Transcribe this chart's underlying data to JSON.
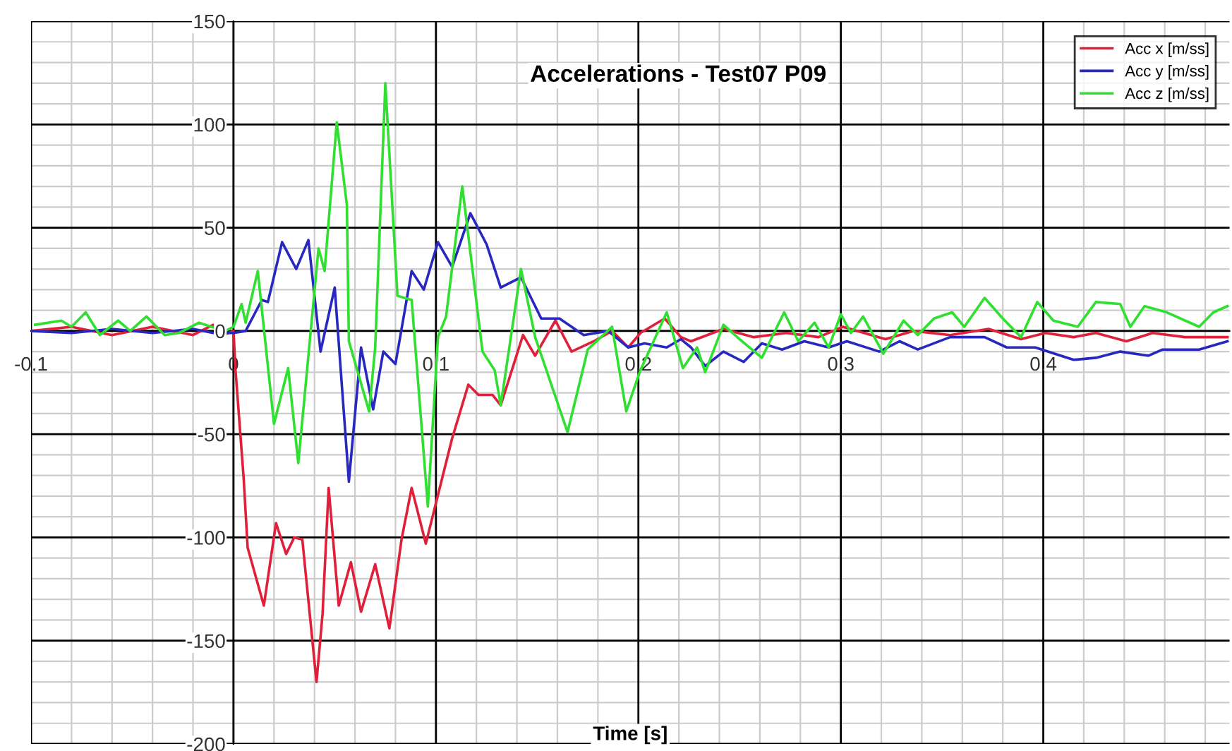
{
  "chart_data": {
    "type": "line",
    "title": "Accelerations - Test07 P09",
    "xlabel": "Time [s]",
    "xlim": [
      -0.1,
      0.492
    ],
    "ylim": [
      -200,
      150
    ],
    "xticks": [
      -0.1,
      0,
      0.1,
      0.2,
      0.3,
      0.4
    ],
    "yticks": [
      -200,
      -150,
      -100,
      -50,
      0,
      50,
      100,
      150
    ],
    "grid": true,
    "legend": "top right",
    "marker": "none",
    "line_style": "solid",
    "series": [
      {
        "name": "Acc x [m/ss]",
        "color": "#e0203a",
        "x": [
          -0.1,
          -0.08,
          -0.06,
          -0.04,
          -0.02,
          -0.01,
          -0.005,
          0,
          0.001,
          0.005,
          0.007,
          0.015,
          0.021,
          0.026,
          0.03,
          0.034,
          0.041,
          0.044,
          0.047,
          0.052,
          0.058,
          0.063,
          0.07,
          0.077,
          0.083,
          0.088,
          0.095,
          0.108,
          0.116,
          0.121,
          0.128,
          0.132,
          0.143,
          0.149,
          0.159,
          0.167,
          0.178,
          0.187,
          0.195,
          0.201,
          0.213,
          0.221,
          0.226,
          0.242,
          0.257,
          0.273,
          0.289,
          0.301,
          0.322,
          0.336,
          0.354,
          0.373,
          0.389,
          0.401,
          0.415,
          0.426,
          0.441,
          0.454,
          0.47,
          0.482,
          0.491
        ],
        "values": [
          0,
          2,
          -2,
          2,
          -2,
          3,
          -2,
          0,
          -19,
          -71,
          -105,
          -133,
          -93,
          -108,
          -100,
          -101,
          -170,
          -137,
          -76,
          -133,
          -112,
          -136,
          -113,
          -144,
          -101,
          -76,
          -103,
          -52,
          -26,
          -31,
          -31,
          -36,
          -2,
          -12,
          5,
          -10,
          -5,
          0,
          -8,
          -1,
          6,
          -3,
          -5,
          1,
          -3,
          -1,
          -3,
          2,
          -4,
          0,
          -2,
          1,
          -4,
          -1,
          -3,
          -1,
          -5,
          -1,
          -3,
          -3,
          -3
        ]
      },
      {
        "name": "Acc y [m/ss]",
        "color": "#2828c0",
        "x": [
          -0.1,
          -0.08,
          -0.06,
          -0.04,
          -0.02,
          -0.01,
          0,
          0.006,
          0.014,
          0.017,
          0.024,
          0.031,
          0.037,
          0.043,
          0.05,
          0.057,
          0.063,
          0.069,
          0.074,
          0.08,
          0.088,
          0.094,
          0.101,
          0.108,
          0.117,
          0.125,
          0.132,
          0.142,
          0.152,
          0.161,
          0.173,
          0.185,
          0.195,
          0.203,
          0.214,
          0.221,
          0.226,
          0.233,
          0.242,
          0.252,
          0.261,
          0.271,
          0.282,
          0.294,
          0.303,
          0.319,
          0.329,
          0.338,
          0.354,
          0.371,
          0.382,
          0.396,
          0.415,
          0.426,
          0.438,
          0.452,
          0.459,
          0.477,
          0.491
        ],
        "values": [
          0,
          -1,
          1,
          -1,
          1,
          -1,
          -1,
          0,
          15,
          14,
          43,
          30,
          44,
          -10,
          21,
          -73,
          -8,
          -38,
          -10,
          -16,
          29,
          20,
          43,
          31,
          57,
          42,
          21,
          26,
          6,
          6,
          -2,
          0,
          -8,
          -6,
          -8,
          -4,
          -8,
          -17,
          -10,
          -15,
          -6,
          -9,
          -5,
          -8,
          -5,
          -10,
          -5,
          -9,
          -3,
          -3,
          -8,
          -8,
          -14,
          -13,
          -10,
          -12,
          -9,
          -9,
          -5
        ]
      },
      {
        "name": "Acc z [m/ss]",
        "color": "#30e030",
        "x": [
          -0.098,
          -0.085,
          -0.08,
          -0.073,
          -0.066,
          -0.057,
          -0.051,
          -0.043,
          -0.034,
          -0.027,
          -0.017,
          -0.011,
          -0.004,
          0,
          0.004,
          0.006,
          0.012,
          0.02,
          0.027,
          0.032,
          0.042,
          0.045,
          0.051,
          0.056,
          0.057,
          0.067,
          0.07,
          0.075,
          0.081,
          0.088,
          0.096,
          0.101,
          0.105,
          0.113,
          0.123,
          0.129,
          0.132,
          0.142,
          0.149,
          0.165,
          0.175,
          0.187,
          0.194,
          0.201,
          0.214,
          0.222,
          0.229,
          0.233,
          0.242,
          0.25,
          0.261,
          0.272,
          0.279,
          0.287,
          0.294,
          0.3,
          0.305,
          0.311,
          0.321,
          0.331,
          0.338,
          0.346,
          0.355,
          0.361,
          0.371,
          0.38,
          0.389,
          0.397,
          0.405,
          0.417,
          0.426,
          0.438,
          0.443,
          0.45,
          0.461,
          0.477,
          0.484,
          0.491
        ],
        "values": [
          3,
          5,
          2,
          9,
          -2,
          5,
          0,
          7,
          -2,
          -1,
          4,
          2,
          0,
          2,
          13,
          4,
          29,
          -45,
          -18,
          -64,
          40,
          29,
          101,
          61,
          -5,
          -39,
          -8,
          120,
          17,
          15,
          -85,
          -3,
          7,
          70,
          -10,
          -19,
          -36,
          30,
          -3,
          -49,
          -9,
          2,
          -39,
          -19,
          9,
          -18,
          -8,
          -20,
          3,
          -4,
          -13,
          9,
          -5,
          4,
          -8,
          8,
          -1,
          7,
          -11,
          5,
          -2,
          6,
          9,
          2,
          16,
          6,
          -3,
          14,
          5,
          2,
          14,
          13,
          2,
          12,
          9,
          2,
          9,
          12
        ]
      }
    ]
  }
}
